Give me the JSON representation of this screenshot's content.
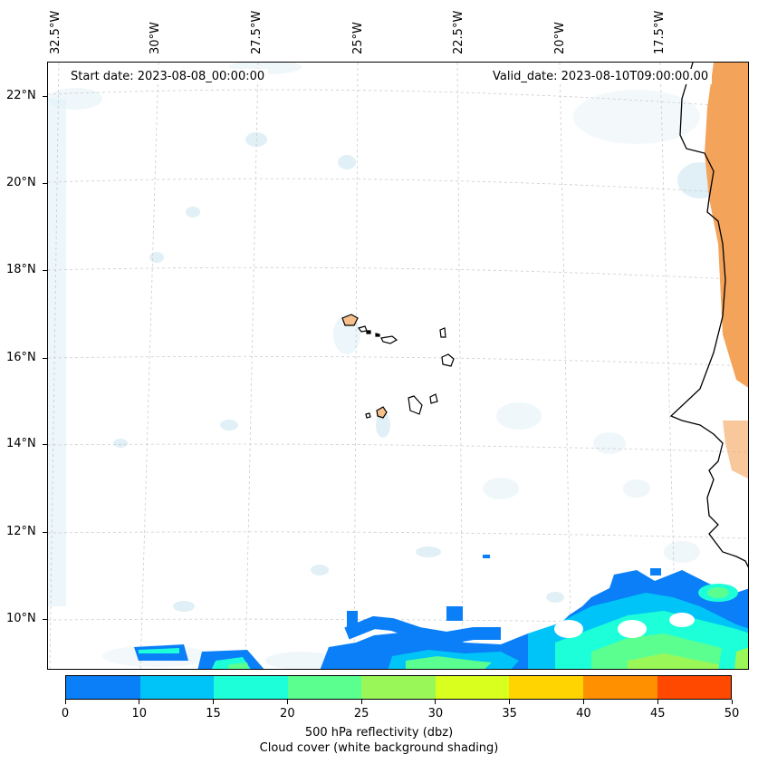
{
  "header": {
    "start_date": "Start date: 2023-08-08_00:00:00",
    "valid_date": "Valid_date: 2023-08-10T09:00:00.00"
  },
  "axes": {
    "lon_labels": [
      "32.5°W",
      "30°W",
      "27.5°W",
      "25°W",
      "22.5°W",
      "20°W",
      "17.5°W"
    ],
    "lat_labels": [
      "22°N",
      "20°N",
      "18°N",
      "16°N",
      "14°N",
      "12°N",
      "10°N"
    ]
  },
  "colorbar": {
    "ticks": [
      "0",
      "10",
      "15",
      "20",
      "25",
      "30",
      "35",
      "40",
      "45",
      "50"
    ],
    "colors": [
      "#0a7ff7",
      "#00c4f7",
      "#1dffd8",
      "#5bff90",
      "#99f758",
      "#d8ff1e",
      "#ffd400",
      "#ff9000",
      "#ff4800"
    ],
    "title_line1": "500 hPa reflectivity (dbz)",
    "title_line2": "Cloud cover (white background shading)"
  },
  "colors": {
    "land_orange": "#f4a45a",
    "cloud_blue": "#d6ebf3"
  }
}
